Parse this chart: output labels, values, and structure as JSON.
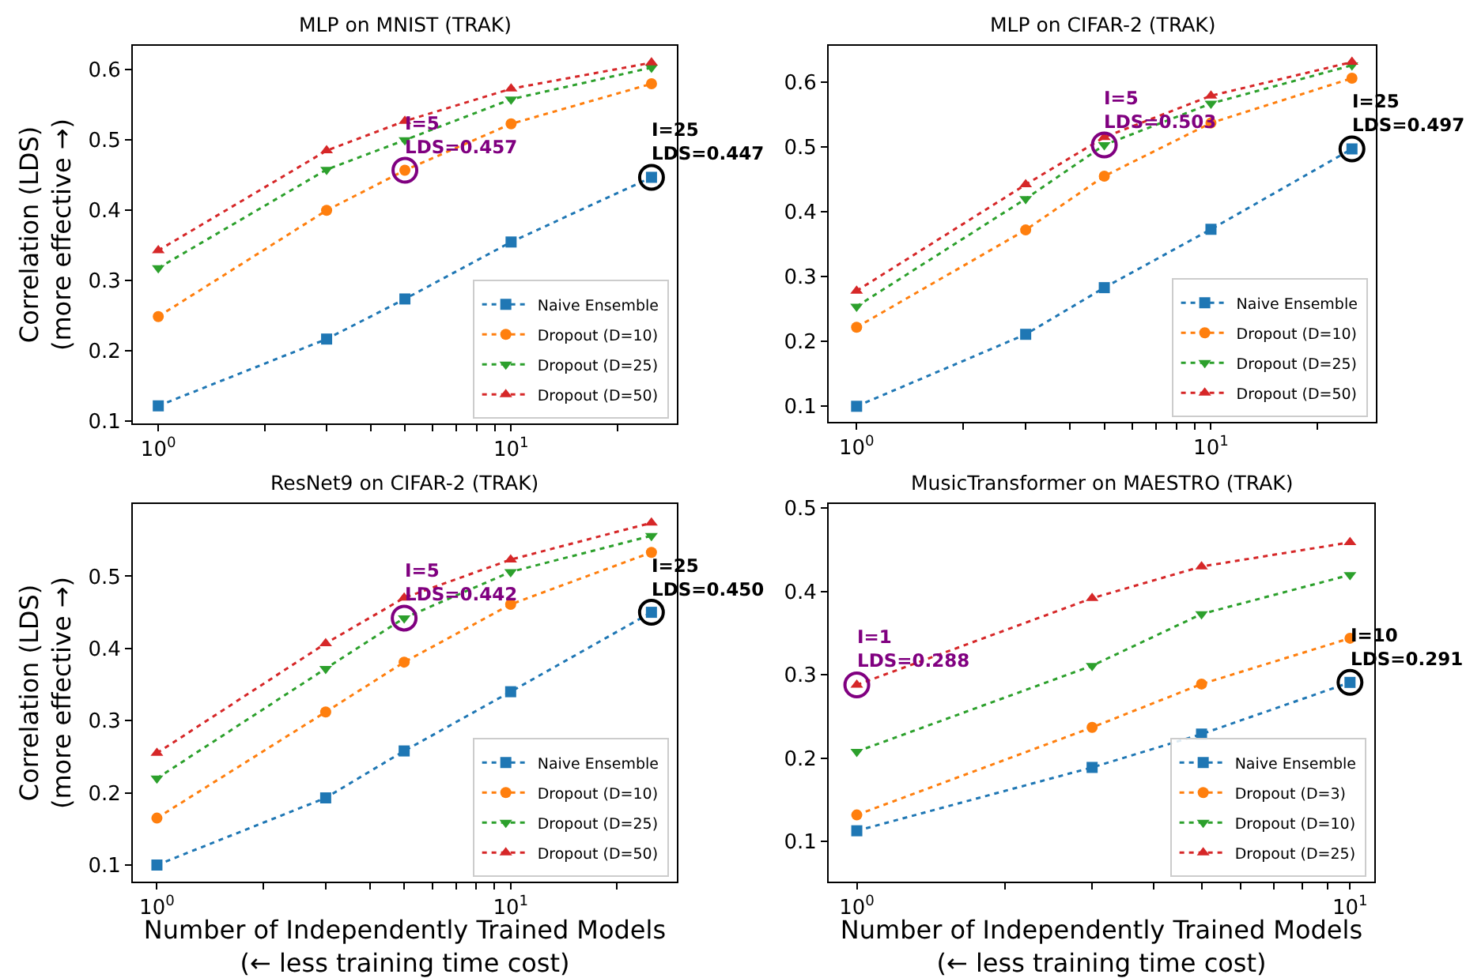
{
  "chart_data": [
    {
      "type": "line",
      "title": "MLP on MNIST (TRAK)",
      "ylabel": "Correlation (LDS)\n(more effective →)",
      "x": [
        1,
        3,
        5,
        10,
        25
      ],
      "log": "x",
      "grid": false,
      "legend": "bottom right",
      "line_style": "dotted",
      "xlim": [
        0.847,
        29.5
      ],
      "xticks": [
        {
          "value": 1,
          "label": "10$^{0}$"
        },
        {
          "value": 2,
          "label": null
        },
        {
          "value": 3,
          "label": null
        },
        {
          "value": 4,
          "label": null
        },
        {
          "value": 5,
          "label": null
        },
        {
          "value": 6,
          "label": null
        },
        {
          "value": 7,
          "label": null
        },
        {
          "value": 8,
          "label": null
        },
        {
          "value": 9,
          "label": null
        },
        {
          "value": 10,
          "label": "10$^{1}$"
        },
        {
          "value": 20,
          "label": null
        }
      ],
      "ylim": [
        0.097,
        0.634
      ],
      "yticks": [
        0.1,
        0.2,
        0.3,
        0.4,
        0.5,
        0.6
      ],
      "series": [
        {
          "name": "Naive Ensemble",
          "color": "#1f77b4",
          "marker": "square",
          "values": [
            0.122,
            0.217,
            0.274,
            0.355,
            0.447
          ]
        },
        {
          "name": "Dropout (D=10)",
          "color": "#ff7f0e",
          "marker": "circle",
          "values": [
            0.249,
            0.4,
            0.457,
            0.523,
            0.58
          ]
        },
        {
          "name": "Dropout (D=25)",
          "color": "#2ca02c",
          "marker": "triangle-down",
          "values": [
            0.318,
            0.458,
            0.5,
            0.558,
            0.603
          ]
        },
        {
          "name": "Dropout (D=50)",
          "color": "#d62728",
          "marker": "triangle",
          "values": [
            0.343,
            0.485,
            0.527,
            0.573,
            0.61
          ]
        }
      ],
      "annotations": [
        {
          "text": "I=5\nLDS=0.457",
          "x": 5,
          "y": 0.457
        },
        {
          "text": "I=25\nLDS=0.447",
          "x": 25,
          "y": 0.447
        }
      ]
    },
    {
      "type": "line",
      "title": "MLP on CIFAR-2 (TRAK)",
      "x": [
        1,
        3,
        5,
        10,
        25
      ],
      "log": "x",
      "grid": false,
      "legend": "bottom right",
      "line_style": "dotted",
      "xlim": [
        0.834,
        29.2
      ],
      "xticks": [
        {
          "value": 1,
          "label": "10$^{0}$"
        },
        {
          "value": 2,
          "label": null
        },
        {
          "value": 3,
          "label": null
        },
        {
          "value": 4,
          "label": null
        },
        {
          "value": 5,
          "label": null
        },
        {
          "value": 6,
          "label": null
        },
        {
          "value": 7,
          "label": null
        },
        {
          "value": 8,
          "label": null
        },
        {
          "value": 9,
          "label": null
        },
        {
          "value": 10,
          "label": "10$^{1}$"
        },
        {
          "value": 20,
          "label": null
        }
      ],
      "ylim": [
        0.076,
        0.656
      ],
      "yticks": [
        0.1,
        0.2,
        0.3,
        0.4,
        0.5,
        0.6
      ],
      "series": [
        {
          "name": "Naive Ensemble",
          "color": "#1f77b4",
          "marker": "square",
          "values": [
            0.1,
            0.211,
            0.283,
            0.373,
            0.497
          ]
        },
        {
          "name": "Dropout (D=10)",
          "color": "#ff7f0e",
          "marker": "circle",
          "values": [
            0.222,
            0.372,
            0.455,
            0.537,
            0.606
          ]
        },
        {
          "name": "Dropout (D=25)",
          "color": "#2ca02c",
          "marker": "triangle-down",
          "values": [
            0.254,
            0.42,
            0.503,
            0.567,
            0.626
          ]
        },
        {
          "name": "Dropout (D=50)",
          "color": "#d62728",
          "marker": "triangle",
          "values": [
            0.278,
            0.442,
            0.515,
            0.579,
            0.631
          ]
        }
      ],
      "annotations": [
        {
          "text": "I=5\nLDS=0.503",
          "x": 5,
          "y": 0.503
        },
        {
          "text": "I=25\nLDS=0.497",
          "x": 25,
          "y": 0.497
        }
      ]
    },
    {
      "type": "line",
      "title": "ResNet9 on CIFAR-2 (TRAK)",
      "xlabel": "Number of Independently Trained Models\n(← less training time cost)",
      "ylabel": "Correlation (LDS)\n(more effective →)",
      "x": [
        1,
        3,
        5,
        10,
        25
      ],
      "log": "x",
      "grid": false,
      "legend": "bottom right",
      "line_style": "dotted",
      "xlim": [
        0.855,
        29.5
      ],
      "xticks": [
        {
          "value": 1,
          "label": "10$^{0}$"
        },
        {
          "value": 2,
          "label": null
        },
        {
          "value": 3,
          "label": null
        },
        {
          "value": 4,
          "label": null
        },
        {
          "value": 5,
          "label": null
        },
        {
          "value": 6,
          "label": null
        },
        {
          "value": 7,
          "label": null
        },
        {
          "value": 8,
          "label": null
        },
        {
          "value": 9,
          "label": null
        },
        {
          "value": 10,
          "label": "10$^{1}$"
        },
        {
          "value": 20,
          "label": null
        }
      ],
      "ylim": [
        0.077,
        0.6
      ],
      "yticks": [
        0.1,
        0.2,
        0.3,
        0.4,
        0.5
      ],
      "series": [
        {
          "name": "Naive Ensemble",
          "color": "#1f77b4",
          "marker": "square",
          "values": [
            0.1,
            0.193,
            0.258,
            0.34,
            0.45
          ]
        },
        {
          "name": "Dropout (D=10)",
          "color": "#ff7f0e",
          "marker": "circle",
          "values": [
            0.165,
            0.312,
            0.381,
            0.461,
            0.533
          ]
        },
        {
          "name": "Dropout (D=25)",
          "color": "#2ca02c",
          "marker": "triangle-down",
          "values": [
            0.22,
            0.372,
            0.442,
            0.506,
            0.556
          ]
        },
        {
          "name": "Dropout (D=50)",
          "color": "#d62728",
          "marker": "triangle",
          "values": [
            0.255,
            0.407,
            0.47,
            0.523,
            0.574
          ]
        }
      ],
      "annotations": [
        {
          "text": "I=5\nLDS=0.442",
          "x": 5,
          "y": 0.442
        },
        {
          "text": "I=25\nLDS=0.450",
          "x": 25,
          "y": 0.45
        }
      ]
    },
    {
      "type": "line",
      "title": "MusicTransformer on MAESTRO (TRAK)",
      "xlabel": "Number of Independently Trained Models\n(← less training time cost)",
      "x": [
        1,
        3,
        5,
        10
      ],
      "log": "x",
      "grid": false,
      "legend": "bottom right",
      "line_style": "dotted",
      "xlim": [
        0.877,
        11.2
      ],
      "xticks": [
        {
          "value": 1,
          "label": "10$^{0}$"
        },
        {
          "value": 2,
          "label": null
        },
        {
          "value": 3,
          "label": null
        },
        {
          "value": 4,
          "label": null
        },
        {
          "value": 5,
          "label": null
        },
        {
          "value": 6,
          "label": null
        },
        {
          "value": 7,
          "label": null
        },
        {
          "value": 8,
          "label": null
        },
        {
          "value": 9,
          "label": null
        },
        {
          "value": 10,
          "label": "10$^{1}$"
        }
      ],
      "ylim": [
        0.052,
        0.505
      ],
      "yticks": [
        0.1,
        0.2,
        0.3,
        0.4,
        0.5
      ],
      "series": [
        {
          "name": "Naive Ensemble",
          "color": "#1f77b4",
          "marker": "square",
          "values": [
            0.113,
            0.189,
            0.229,
            0.291
          ]
        },
        {
          "name": "Dropout (D=3)",
          "color": "#ff7f0e",
          "marker": "circle",
          "values": [
            0.132,
            0.237,
            0.289,
            0.344
          ]
        },
        {
          "name": "Dropout (D=10)",
          "color": "#2ca02c",
          "marker": "triangle-down",
          "values": [
            0.208,
            0.311,
            0.373,
            0.42
          ]
        },
        {
          "name": "Dropout (D=25)",
          "color": "#d62728",
          "marker": "triangle",
          "values": [
            0.288,
            0.392,
            0.43,
            0.459
          ]
        }
      ],
      "annotations": [
        {
          "text": "I=1\nLDS=0.288",
          "x": 1,
          "y": 0.288
        },
        {
          "text": "I=10\nLDS=0.291",
          "x": 10,
          "y": 0.291
        }
      ]
    }
  ]
}
